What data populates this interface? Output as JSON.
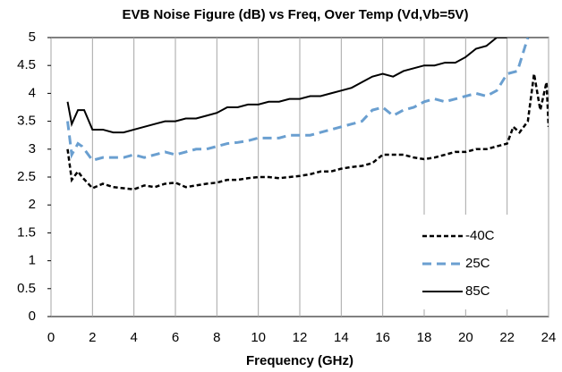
{
  "chart_data": {
    "type": "line",
    "title": "EVB Noise Figure (dB) vs Freq, Over Temp (Vd,Vb=5V)",
    "x_label": "Frequency (GHz)",
    "xlim": [
      0,
      24
    ],
    "xticks": [
      0,
      2,
      4,
      6,
      8,
      10,
      12,
      14,
      16,
      18,
      20,
      22,
      24
    ],
    "ylim": [
      0,
      5
    ],
    "yticks": [
      0,
      0.5,
      1,
      1.5,
      2,
      2.5,
      3,
      3.5,
      4,
      4.5,
      5
    ],
    "grid": "x",
    "legend": "lower right",
    "series": [
      {
        "name": "-40C",
        "color": "#000000",
        "dash": "dashed",
        "x": [
          0.8,
          1.0,
          1.3,
          1.5,
          2,
          2.5,
          3,
          3.5,
          4,
          4.5,
          5,
          5.5,
          6,
          6.5,
          7,
          7.5,
          8,
          8.5,
          9,
          9.5,
          10,
          10.5,
          11,
          11.5,
          12,
          12.5,
          13,
          13.5,
          14,
          14.5,
          15,
          15.5,
          16,
          16.5,
          17,
          17.5,
          18,
          18.5,
          19,
          19.5,
          20,
          20.5,
          21,
          21.5,
          22,
          22.3,
          22.6,
          23,
          23.3,
          23.6,
          23.9,
          24
        ],
        "values": [
          3.0,
          2.45,
          2.6,
          2.5,
          2.3,
          2.38,
          2.32,
          2.3,
          2.28,
          2.35,
          2.32,
          2.38,
          2.4,
          2.32,
          2.35,
          2.38,
          2.4,
          2.45,
          2.45,
          2.48,
          2.5,
          2.5,
          2.48,
          2.5,
          2.52,
          2.55,
          2.6,
          2.6,
          2.65,
          2.68,
          2.7,
          2.75,
          2.9,
          2.9,
          2.9,
          2.85,
          2.82,
          2.85,
          2.9,
          2.95,
          2.95,
          3.0,
          3.0,
          3.05,
          3.1,
          3.4,
          3.3,
          3.5,
          4.35,
          3.7,
          4.2,
          3.4
        ]
      },
      {
        "name": "25C",
        "color": "#6a9fd0",
        "dash": "long-dashed",
        "x": [
          0.8,
          1.0,
          1.3,
          1.5,
          2,
          2.5,
          3,
          3.5,
          4,
          4.5,
          5,
          5.5,
          6,
          6.5,
          7,
          7.5,
          8,
          8.5,
          9,
          9.5,
          10,
          10.5,
          11,
          11.5,
          12,
          12.5,
          13,
          13.5,
          14,
          14.5,
          15,
          15.5,
          16,
          16.5,
          17,
          17.5,
          18,
          18.5,
          19,
          19.5,
          20,
          20.5,
          21,
          21.5,
          22,
          22.5,
          23
        ],
        "values": [
          3.5,
          2.9,
          3.1,
          3.05,
          2.8,
          2.85,
          2.85,
          2.85,
          2.9,
          2.85,
          2.9,
          2.95,
          2.9,
          2.95,
          3.0,
          3.0,
          3.05,
          3.1,
          3.12,
          3.15,
          3.2,
          3.2,
          3.2,
          3.25,
          3.25,
          3.25,
          3.3,
          3.35,
          3.4,
          3.45,
          3.5,
          3.7,
          3.75,
          3.6,
          3.7,
          3.75,
          3.85,
          3.9,
          3.85,
          3.9,
          3.95,
          4.0,
          3.95,
          4.05,
          4.35,
          4.4,
          5.0
        ]
      },
      {
        "name": "85C",
        "color": "#000000",
        "dash": "solid",
        "x": [
          0.8,
          1.0,
          1.3,
          1.6,
          2,
          2.5,
          3,
          3.5,
          4,
          4.5,
          5,
          5.5,
          6,
          6.5,
          7,
          7.5,
          8,
          8.5,
          9,
          9.5,
          10,
          10.5,
          11,
          11.5,
          12,
          12.5,
          13,
          13.5,
          14,
          14.5,
          15,
          15.5,
          16,
          16.5,
          17,
          17.5,
          18,
          18.5,
          19,
          19.5,
          20,
          20.5,
          21,
          21.5,
          22
        ],
        "values": [
          3.85,
          3.45,
          3.7,
          3.7,
          3.35,
          3.35,
          3.3,
          3.3,
          3.35,
          3.4,
          3.45,
          3.5,
          3.5,
          3.55,
          3.55,
          3.6,
          3.65,
          3.75,
          3.75,
          3.8,
          3.8,
          3.85,
          3.85,
          3.9,
          3.9,
          3.95,
          3.95,
          4.0,
          4.05,
          4.1,
          4.2,
          4.3,
          4.35,
          4.3,
          4.4,
          4.45,
          4.5,
          4.5,
          4.55,
          4.55,
          4.65,
          4.8,
          4.85,
          5.0,
          5.0
        ]
      }
    ]
  }
}
